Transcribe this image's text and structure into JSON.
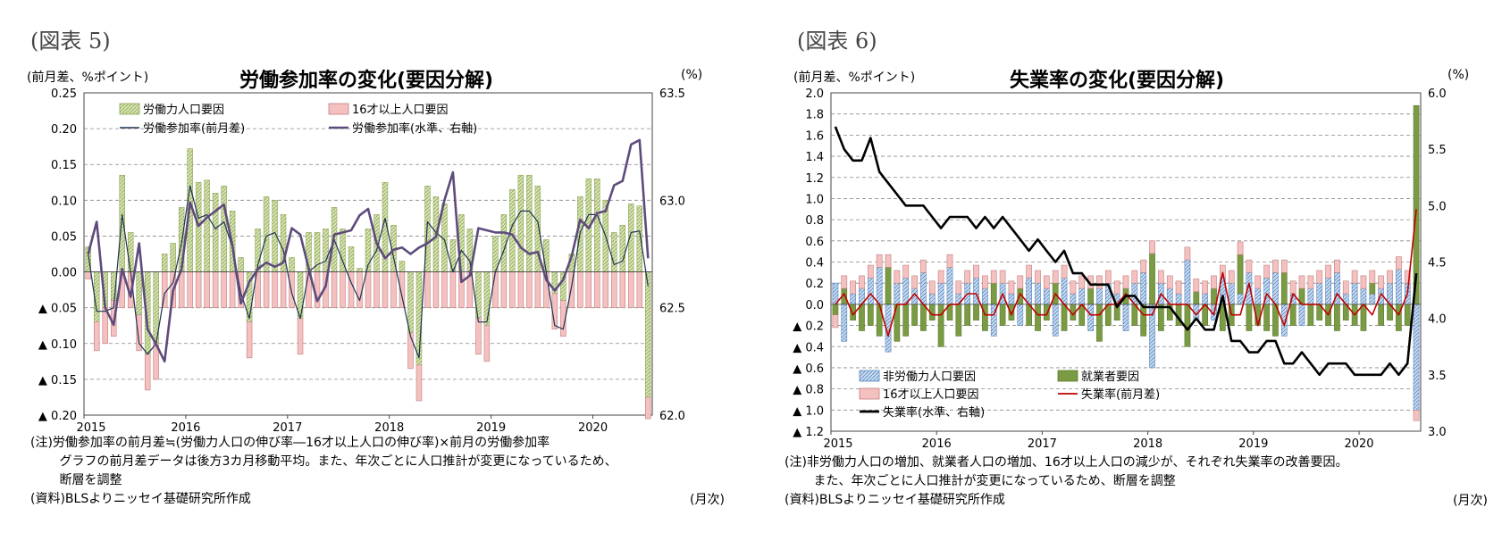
{
  "panels": [
    {
      "fig_label": "(図表 5)",
      "title": "労働参加率の変化(要因分解)",
      "unit_left": "(前月差、%ポイント)",
      "unit_right": "(%)",
      "notes": [
        "(注)労働参加率の前月差≒(労働力人口の伸び率―16才以上人口の伸び率)×前月の労働参加率",
        "　　 グラフの前月差データは後方3カ月移動平均。また、年次ごとに人口推計が変更になっているため、",
        "　　 断層を調整",
        "(資料)BLSよりニッセイ基礎研究所作成"
      ],
      "month_label": "(月次)"
    },
    {
      "fig_label": "(図表 6)",
      "title": "失業率の変化(要因分解)",
      "unit_left": "(前月差、%ポイント)",
      "unit_right": "(%)",
      "notes": [
        "(注)非労働力人口の増加、就業者人口の増加、16才以上人口の減少が、それぞれ失業率の改善要因。",
        "　　 また、年次ごとに人口推計が変更になっているため、断層を調整",
        "(資料)BLSよりニッセイ基礎研究所作成"
      ],
      "month_label": "(月次)"
    }
  ],
  "chart_data": [
    {
      "type": "bar",
      "title": "労働参加率の変化(要因分解)",
      "x_tick_labels": [
        "2015",
        "2016",
        "2017",
        "2018",
        "2019",
        "2020"
      ],
      "x_start": "2015-01",
      "x_end": "2020-03",
      "ylim_left": [
        -0.2,
        0.25
      ],
      "y_ticks_left": [
        0.25,
        0.2,
        0.15,
        0.1,
        0.05,
        0.0,
        -0.05,
        -0.1,
        -0.15,
        -0.2
      ],
      "y_tick_labels_left": [
        "0.25",
        "0.20",
        "0.15",
        "0.10",
        "0.05",
        "0.00",
        "▲ 0.05",
        "▲ 0.10",
        "▲ 0.15",
        "▲ 0.20"
      ],
      "ylim_right": [
        62.0,
        63.5
      ],
      "y_ticks_right": [
        63.5,
        63.0,
        62.5,
        62.0
      ],
      "y_tick_labels_right": [
        "63.5",
        "63.0",
        "62.5",
        "62.0"
      ],
      "grid": "horizontal dashed",
      "legend_position": "top",
      "colors": {
        "labor_force": "#d6e4b0",
        "labor_force_border": "#8fa55a",
        "population": "#f4c0c0",
        "population_border": "#c08080",
        "lfpr_diff": "#1f3350",
        "lfpr_level": "#5e4b7c"
      },
      "series": [
        {
          "name": "労働力人口要因",
          "kind": "bar",
          "color": "#d6e4b0",
          "values": [
            0.035,
            -0.07,
            -0.05,
            -0.04,
            0.135,
            0.055,
            -0.06,
            -0.115,
            -0.1,
            0.025,
            0.04,
            0.09,
            0.172,
            0.125,
            0.128,
            0.11,
            0.12,
            0.085,
            0.02,
            -0.07,
            0.06,
            0.105,
            0.1,
            0.08,
            0.02,
            -0.065,
            0.055,
            0.055,
            0.06,
            0.09,
            0.06,
            0.035,
            0.005,
            0.06,
            0.08,
            0.125,
            0.065,
            0.015,
            -0.085,
            -0.13,
            0.12,
            0.105,
            0.095,
            0.045,
            0.08,
            0.06,
            -0.065,
            -0.075,
            0.05,
            0.08,
            0.115,
            0.135,
            0.135,
            0.12,
            0.045,
            -0.03,
            -0.04,
            0.025,
            0.105,
            0.13,
            0.13,
            0.1,
            0.055,
            0.065,
            0.095,
            0.092,
            -0.175
          ]
        },
        {
          "name": "16才以上人口要因",
          "kind": "bar",
          "color": "#f4c0c0",
          "values": [
            -0.01,
            -0.04,
            -0.05,
            -0.05,
            -0.05,
            -0.05,
            -0.05,
            -0.05,
            -0.05,
            -0.05,
            -0.05,
            -0.05,
            -0.05,
            -0.05,
            -0.05,
            -0.05,
            -0.05,
            -0.05,
            -0.05,
            -0.05,
            -0.05,
            -0.05,
            -0.05,
            -0.05,
            -0.05,
            -0.05,
            -0.05,
            -0.05,
            -0.05,
            -0.05,
            -0.05,
            -0.05,
            -0.05,
            -0.05,
            -0.05,
            -0.05,
            -0.05,
            -0.05,
            -0.05,
            -0.05,
            -0.05,
            -0.05,
            -0.05,
            -0.05,
            -0.05,
            -0.05,
            -0.05,
            -0.05,
            -0.05,
            -0.05,
            -0.05,
            -0.05,
            -0.05,
            -0.05,
            -0.05,
            -0.05,
            -0.05,
            -0.05,
            -0.05,
            -0.05,
            -0.05,
            -0.05,
            -0.05,
            -0.05,
            -0.05,
            -0.05,
            -0.03
          ]
        },
        {
          "name": "労働参加率(前月差)",
          "kind": "line",
          "axis": "left",
          "color": "#1f3350",
          "values": [
            0.025,
            -0.055,
            -0.055,
            -0.05,
            0.08,
            0.0,
            -0.1,
            -0.115,
            -0.1,
            -0.03,
            -0.015,
            0.04,
            0.12,
            0.075,
            0.08,
            0.06,
            0.07,
            0.035,
            -0.03,
            -0.065,
            0.01,
            0.05,
            0.055,
            0.03,
            -0.03,
            -0.065,
            0.0,
            0.01,
            0.015,
            0.045,
            0.015,
            -0.015,
            -0.04,
            0.01,
            0.03,
            0.075,
            0.02,
            -0.035,
            -0.09,
            -0.12,
            0.07,
            0.055,
            0.045,
            0.0,
            0.03,
            0.015,
            -0.07,
            -0.07,
            0.0,
            0.03,
            0.065,
            0.085,
            0.085,
            0.07,
            0.0,
            -0.075,
            -0.08,
            -0.02,
            0.055,
            0.08,
            0.08,
            0.05,
            0.01,
            0.015,
            0.055,
            0.057,
            -0.02
          ]
        },
        {
          "name": "労働参加率(水準、右軸)",
          "kind": "line",
          "axis": "right",
          "color": "#5e4b7c",
          "values": [
            62.75,
            62.9,
            62.5,
            62.42,
            62.68,
            62.55,
            62.8,
            62.4,
            62.33,
            62.25,
            62.58,
            62.68,
            62.99,
            62.88,
            62.92,
            62.95,
            62.98,
            62.79,
            62.52,
            62.62,
            62.68,
            62.71,
            62.69,
            62.71,
            62.87,
            62.84,
            62.68,
            62.53,
            62.6,
            62.84,
            62.85,
            62.86,
            62.93,
            62.96,
            62.8,
            62.73,
            62.77,
            62.78,
            62.75,
            62.78,
            62.8,
            62.83,
            63.0,
            63.13,
            62.62,
            62.65,
            62.87,
            62.86,
            62.85,
            62.85,
            62.84,
            62.78,
            62.75,
            62.76,
            62.63,
            62.58,
            62.63,
            62.74,
            62.91,
            62.87,
            62.94,
            62.95,
            63.07,
            63.09,
            63.26,
            63.28,
            62.73
          ]
        }
      ]
    },
    {
      "type": "bar",
      "title": "失業率の変化(要因分解)",
      "x_tick_labels": [
        "2015",
        "2016",
        "2017",
        "2018",
        "2019",
        "2020"
      ],
      "x_start": "2015-01",
      "x_end": "2020-03",
      "ylim_left": [
        -1.2,
        2.0
      ],
      "y_ticks_left": [
        2.0,
        1.8,
        1.6,
        1.4,
        1.2,
        1.0,
        0.8,
        0.6,
        0.4,
        0.2,
        0.0,
        -0.2,
        -0.4,
        -0.6,
        -0.8,
        -1.0,
        -1.2
      ],
      "y_tick_labels_left": [
        "2.0",
        "1.8",
        "1.6",
        "1.4",
        "1.2",
        "1.0",
        "0.8",
        "0.6",
        "0.4",
        "0.2",
        "0.0",
        "▲ 0.2",
        "▲ 0.4",
        "▲ 0.6",
        "▲ 0.8",
        "▲ 1.0",
        "▲ 1.2"
      ],
      "ylim_right": [
        3.0,
        6.0
      ],
      "y_ticks_right": [
        6.0,
        5.5,
        5.0,
        4.5,
        4.0,
        3.5,
        3.0
      ],
      "y_tick_labels_right": [
        "6.0",
        "5.5",
        "5.0",
        "4.5",
        "4.0",
        "3.5",
        "3.0"
      ],
      "grid": "horizontal dashed",
      "legend_position": "bottom-left",
      "colors": {
        "nilf": "#bcd4ec",
        "nilf_border": "#5a86be",
        "employed": "#7a9a43",
        "population": "#f4c0c0",
        "ur_diff": "#c00000",
        "ur_level": "#000000"
      },
      "series": [
        {
          "name": "非労働力人口要因",
          "kind": "bar",
          "color": "#bcd4ec",
          "values": [
            0.2,
            -0.35,
            0.1,
            0.15,
            0.25,
            0.35,
            -0.45,
            0.2,
            0.25,
            0.15,
            0.3,
            0.1,
            0.2,
            0.35,
            0.1,
            0.2,
            0.25,
            0.15,
            -0.3,
            0.2,
            0.1,
            -0.2,
            0.25,
            0.2,
            0.15,
            -0.3,
            0.25,
            0.1,
            0.15,
            -0.25,
            0.15,
            0.2,
            0.1,
            -0.25,
            0.2,
            0.3,
            -0.6,
            0.2,
            0.15,
            0.1,
            0.42,
            -0.15,
            0.1,
            -0.15,
            0.25,
            0.2,
            0.1,
            0.3,
            0.15,
            0.25,
            0.3,
            -0.3,
            0.1,
            -0.2,
            0.15,
            0.2,
            0.25,
            0.3,
            0.1,
            0.2,
            0.15,
            0.1,
            0.15,
            0.2,
            0.33,
            0.2,
            -1.0
          ]
        },
        {
          "name": "就業者要因",
          "kind": "bar",
          "color": "#7a9a43",
          "values": [
            -0.1,
            0.15,
            -0.15,
            -0.25,
            -0.2,
            -0.3,
            0.35,
            -0.35,
            -0.3,
            -0.2,
            -0.25,
            -0.15,
            -0.4,
            -0.15,
            -0.3,
            -0.2,
            -0.15,
            -0.25,
            0.2,
            -0.2,
            -0.15,
            0.15,
            -0.2,
            -0.25,
            -0.15,
            0.2,
            -0.25,
            -0.15,
            -0.2,
            0.15,
            -0.35,
            -0.2,
            -0.15,
            0.15,
            -0.2,
            -0.3,
            0.48,
            -0.25,
            -0.15,
            -0.2,
            -0.4,
            0.12,
            -0.2,
            0.15,
            -0.25,
            -0.2,
            0.37,
            -0.25,
            -0.2,
            -0.25,
            -0.3,
            0.3,
            -0.2,
            0.15,
            -0.2,
            -0.15,
            -0.2,
            -0.25,
            -0.15,
            -0.2,
            -0.25,
            0.1,
            -0.2,
            -0.15,
            -0.25,
            -0.2,
            1.88
          ]
        },
        {
          "name": "16才以上人口要因",
          "kind": "bar",
          "color": "#f4c0c0",
          "values": [
            -0.12,
            0.12,
            0.12,
            0.12,
            0.12,
            0.12,
            0.12,
            0.12,
            0.12,
            0.12,
            0.12,
            0.12,
            0.12,
            0.12,
            0.12,
            0.12,
            0.12,
            0.12,
            0.12,
            0.12,
            0.12,
            0.12,
            0.12,
            0.12,
            0.12,
            0.12,
            0.12,
            0.12,
            0.12,
            0.12,
            0.12,
            0.12,
            0.12,
            0.12,
            0.12,
            0.12,
            0.12,
            0.12,
            0.12,
            0.12,
            0.12,
            0.12,
            0.12,
            0.12,
            0.12,
            0.12,
            0.12,
            0.12,
            0.12,
            0.12,
            0.12,
            0.12,
            0.12,
            0.12,
            0.12,
            0.12,
            0.12,
            0.12,
            0.12,
            0.12,
            0.12,
            0.12,
            0.12,
            0.12,
            0.12,
            0.12,
            -0.1
          ]
        },
        {
          "name": "失業率(前月差)",
          "kind": "line",
          "axis": "left",
          "color": "#c00000",
          "values": [
            0.0,
            0.1,
            -0.1,
            0.0,
            0.1,
            0.0,
            -0.3,
            0.0,
            0.0,
            0.1,
            0.0,
            -0.1,
            -0.1,
            0.0,
            0.0,
            0.1,
            0.1,
            -0.1,
            -0.1,
            0.1,
            -0.1,
            0.1,
            0.0,
            -0.1,
            -0.1,
            0.1,
            0.0,
            -0.1,
            0.0,
            -0.1,
            -0.1,
            0.0,
            0.0,
            0.1,
            0.0,
            -0.1,
            -0.1,
            0.1,
            0.0,
            0.0,
            0.0,
            -0.1,
            0.0,
            -0.1,
            0.3,
            -0.1,
            -0.1,
            0.2,
            -0.2,
            0.1,
            0.0,
            -0.2,
            0.1,
            0.0,
            0.0,
            0.0,
            -0.1,
            0.1,
            0.0,
            -0.1,
            0.0,
            -0.1,
            0.1,
            0.0,
            -0.1,
            0.1,
            0.9
          ]
        },
        {
          "name": "失業率(水準、右軸)",
          "kind": "line",
          "axis": "right",
          "color": "#000000",
          "values": [
            5.7,
            5.5,
            5.4,
            5.4,
            5.6,
            5.3,
            5.2,
            5.1,
            5.0,
            5.0,
            5.0,
            4.9,
            4.8,
            4.9,
            4.9,
            4.9,
            4.8,
            4.9,
            4.8,
            4.9,
            4.8,
            4.7,
            4.6,
            4.7,
            4.6,
            4.5,
            4.6,
            4.4,
            4.4,
            4.3,
            4.3,
            4.3,
            4.1,
            4.2,
            4.2,
            4.1,
            4.1,
            4.1,
            4.1,
            4.0,
            3.9,
            4.0,
            3.9,
            3.9,
            4.2,
            3.8,
            3.8,
            3.7,
            3.7,
            3.8,
            3.8,
            3.6,
            3.6,
            3.7,
            3.6,
            3.5,
            3.6,
            3.6,
            3.6,
            3.5,
            3.5,
            3.5,
            3.5,
            3.6,
            3.5,
            3.6,
            4.4
          ]
        }
      ]
    }
  ]
}
